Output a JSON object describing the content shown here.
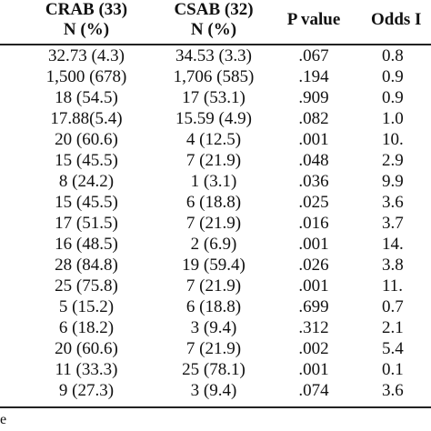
{
  "headers": {
    "crab_line1": "CRAB (33)",
    "crab_line2": "N (%)",
    "csab_line1": "CSAB (32)",
    "csab_line2": "N (%)",
    "pvalue": "P value",
    "odds": "Odds I"
  },
  "rows": [
    {
      "crab": "32.73 (4.3)",
      "csab": "34.53 (3.3)",
      "p": ".067",
      "odds": "0.8"
    },
    {
      "crab": "1,500 (678)",
      "csab": "1,706 (585)",
      "p": ".194",
      "odds": "0.9"
    },
    {
      "crab": "18 (54.5)",
      "csab": "17 (53.1)",
      "p": ".909",
      "odds": "0.9"
    },
    {
      "crab": "17.88(5.4)",
      "csab": "15.59 (4.9)",
      "p": ".082",
      "odds": "1.0"
    },
    {
      "crab": "20 (60.6)",
      "csab": "4 (12.5)",
      "p": ".001",
      "odds": "10."
    },
    {
      "crab": "15 (45.5)",
      "csab": "7 (21.9)",
      "p": ".048",
      "odds": "2.9"
    },
    {
      "crab": "8 (24.2)",
      "csab": "1 (3.1)",
      "p": ".036",
      "odds": "9.9"
    },
    {
      "crab": "15 (45.5)",
      "csab": "6 (18.8)",
      "p": ".025",
      "odds": "3.6"
    },
    {
      "crab": "17 (51.5)",
      "csab": "7 (21.9)",
      "p": ".016",
      "odds": "3.7"
    },
    {
      "crab": "16 (48.5)",
      "csab": "2 (6.9)",
      "p": ".001",
      "odds": "14."
    },
    {
      "crab": "28 (84.8)",
      "csab": "19 (59.4)",
      "p": ".026",
      "odds": "3.8"
    },
    {
      "crab": "25 (75.8)",
      "csab": "7 (21.9)",
      "p": ".001",
      "odds": "11."
    },
    {
      "crab": "5 (15.2)",
      "csab": "6 (18.8)",
      "p": ".699",
      "odds": "0.7"
    },
    {
      "crab": "6 (18.2)",
      "csab": "3 (9.4)",
      "p": ".312",
      "odds": "2.1"
    },
    {
      "crab": "20 (60.6)",
      "csab": "7 (21.9)",
      "p": ".002",
      "odds": "5.4"
    },
    {
      "crab": "11 (33.3)",
      "csab": "25 (78.1)",
      "p": ".001",
      "odds": "0.1"
    },
    {
      "crab": "9 (27.3)",
      "csab": "3 (9.4)",
      "p": ".074",
      "odds": "3.6"
    }
  ],
  "footer_text": "e"
}
